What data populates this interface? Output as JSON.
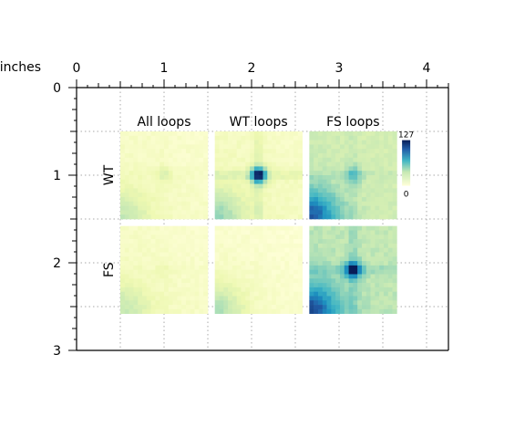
{
  "chart_data": {
    "type": "heatmap",
    "axis_unit_label": "inches",
    "x_ticks": [
      "0",
      "1",
      "2",
      "3",
      "4"
    ],
    "y_ticks": [
      "0",
      "1",
      "2",
      "3"
    ],
    "xlim": [
      0,
      4.25
    ],
    "ylim": [
      0,
      3
    ],
    "grid": true,
    "column_labels": [
      "All loops",
      "WT loops",
      "FS loops"
    ],
    "row_labels": [
      "WT",
      "FS"
    ],
    "colorbar": {
      "max_label": "127",
      "min_label": "0",
      "low_color": "#ffffd9",
      "high_color": "#081d58"
    },
    "panels": [
      {
        "row": "WT",
        "column": "All loops",
        "center_intensity": 0.22,
        "background_intensity": 0.1,
        "corner_intensity": 0.3
      },
      {
        "row": "WT",
        "column": "WT loops",
        "center_intensity": 0.95,
        "background_intensity": 0.12,
        "corner_intensity": 0.4
      },
      {
        "row": "WT",
        "column": "FS loops",
        "center_intensity": 0.55,
        "background_intensity": 0.3,
        "corner_intensity": 0.85
      },
      {
        "row": "FS",
        "column": "All loops",
        "center_intensity": 0.15,
        "background_intensity": 0.1,
        "corner_intensity": 0.3
      },
      {
        "row": "FS",
        "column": "WT loops",
        "center_intensity": 0.1,
        "background_intensity": 0.08,
        "corner_intensity": 0.35
      },
      {
        "row": "FS",
        "column": "FS loops",
        "center_intensity": 1.0,
        "background_intensity": 0.35,
        "corner_intensity": 0.9
      }
    ]
  }
}
